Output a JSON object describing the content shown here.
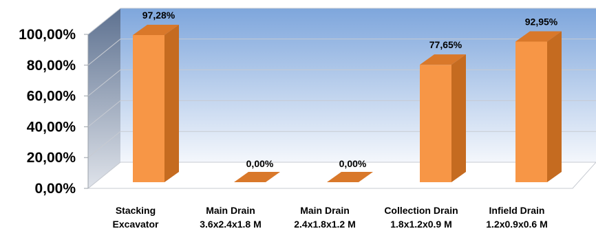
{
  "chart_data": {
    "type": "bar",
    "style": "3d-column",
    "categories": [
      [
        "Stacking",
        "Excavator"
      ],
      [
        "Main Drain",
        "3.6x2.4x1.8 M"
      ],
      [
        "Main Drain",
        "2.4x1.8x1.2 M"
      ],
      [
        "Collection Drain",
        "1.8x1.2x0.9 M"
      ],
      [
        "Infield Drain",
        "1.2x0.9x0.6 M"
      ]
    ],
    "values": [
      97.28,
      0.0,
      0.0,
      77.65,
      92.95
    ],
    "data_labels": [
      "97,28%",
      "0,00%",
      "0,00%",
      "77,65%",
      "92,95%"
    ],
    "yticks": [
      "0,00%",
      "20,00%",
      "40,00%",
      "60,00%",
      "80,00%",
      "100,00%"
    ],
    "ylim": [
      0,
      100
    ],
    "grid": true,
    "title": "",
    "xlabel": "",
    "ylabel": "",
    "colors": {
      "bar_front": "#f79646",
      "bar_side": "#c56b20",
      "bar_top": "#d9782a",
      "wall_top": "#7ea6dc",
      "wall_bottom": "#f4f7fc",
      "side_wall_top": "#5d7190",
      "side_wall_bottom": "#dfe3ea",
      "grid": "#c7cbd2"
    }
  }
}
